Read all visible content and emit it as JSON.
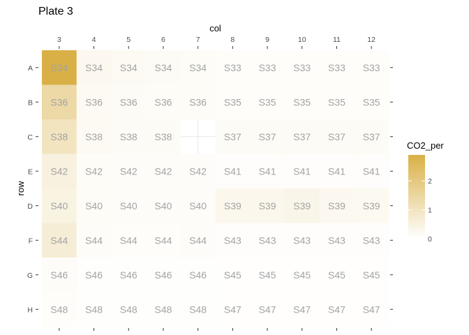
{
  "chart_data": {
    "type": "heatmap",
    "title": "Plate 3",
    "xlabel": "col",
    "ylabel": "row",
    "x_position": "top",
    "grid": true,
    "columns": [
      "3",
      "4",
      "5",
      "6",
      "7",
      "8",
      "9",
      "10",
      "11",
      "12"
    ],
    "rows": [
      "A",
      "B",
      "C",
      "E",
      "D",
      "F",
      "G",
      "H"
    ],
    "labels": [
      [
        "S34",
        "S34",
        "S34",
        "S34",
        "S34",
        "S33",
        "S33",
        "S33",
        "S33",
        "S33"
      ],
      [
        "S36",
        "S36",
        "S36",
        "S36",
        "S36",
        "S35",
        "S35",
        "S35",
        "S35",
        "S35"
      ],
      [
        "S38",
        "S38",
        "S38",
        "S38",
        null,
        "S37",
        "S37",
        "S37",
        "S37",
        "S37"
      ],
      [
        "S42",
        "S42",
        "S42",
        "S42",
        "S42",
        "S41",
        "S41",
        "S41",
        "S41",
        "S41"
      ],
      [
        "S40",
        "S40",
        "S40",
        "S40",
        "S40",
        "S39",
        "S39",
        "S39",
        "S39",
        "S39"
      ],
      [
        "S44",
        "S44",
        "S44",
        "S44",
        "S44",
        "S43",
        "S43",
        "S43",
        "S43",
        "S43"
      ],
      [
        "S46",
        "S46",
        "S46",
        "S46",
        "S46",
        "S45",
        "S45",
        "S45",
        "S45",
        "S45"
      ],
      [
        "S48",
        "S48",
        "S48",
        "S48",
        "S48",
        "S47",
        "S47",
        "S47",
        "S47",
        "S47"
      ]
    ],
    "values": [
      [
        2.9,
        0.25,
        0.2,
        0.15,
        0.12,
        0.08,
        0.08,
        0.08,
        0.08,
        0.08
      ],
      [
        1.4,
        0.2,
        0.15,
        0.12,
        0.12,
        0.08,
        0.08,
        0.08,
        0.08,
        0.08
      ],
      [
        1.0,
        0.2,
        0.15,
        0.15,
        null,
        0.15,
        0.15,
        0.15,
        0.15,
        0.15
      ],
      [
        0.5,
        0.12,
        0.1,
        0.1,
        0.1,
        0.06,
        0.06,
        0.06,
        0.06,
        0.06
      ],
      [
        0.45,
        0.12,
        0.1,
        0.1,
        0.1,
        0.3,
        0.3,
        0.35,
        0.25,
        0.22
      ],
      [
        0.65,
        0.1,
        0.08,
        0.08,
        0.1,
        0.06,
        0.06,
        0.06,
        0.06,
        0.06
      ],
      [
        0.1,
        0.05,
        0.05,
        0.05,
        0.05,
        0.03,
        0.03,
        0.03,
        0.03,
        0.03
      ],
      [
        0.08,
        0.05,
        0.05,
        0.05,
        0.05,
        0.03,
        0.03,
        0.03,
        0.03,
        0.03
      ]
    ],
    "legend": {
      "title": "CO2_per",
      "ticks": [
        0,
        1,
        2
      ],
      "range": [
        0,
        2.9
      ],
      "color_low": "#ffffff",
      "color_high": "#d9b046"
    }
  }
}
